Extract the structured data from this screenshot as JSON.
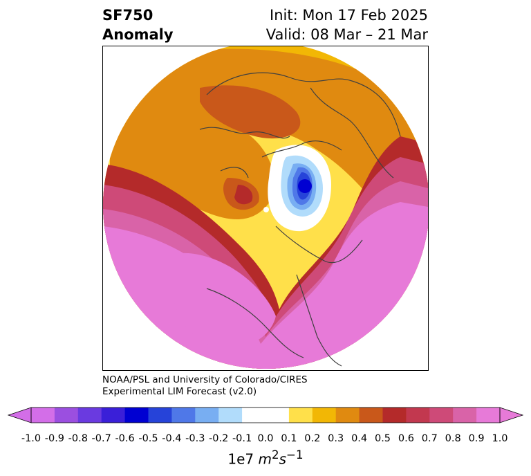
{
  "header": {
    "title_line1": "SF750",
    "title_line2": "Anomaly",
    "init": "Init: Mon 17 Feb 2025",
    "valid": "Valid: 08 Mar – 21 Mar"
  },
  "credit": {
    "line1": "NOAA/PSL and University of Colorado/CIRES",
    "line2": "Experimental LIM Forecast (v2.0)"
  },
  "colorbar": {
    "unit_base": "1e7 ",
    "unit_math": "m",
    "unit_sup1": "2",
    "unit_math2": "s",
    "unit_sup2": "−1",
    "ticks": [
      "-1.0",
      "-0.9",
      "-0.8",
      "-0.7",
      "-0.6",
      "-0.5",
      "-0.4",
      "-0.3",
      "-0.2",
      "-0.1",
      "0.0",
      "0.1",
      "0.2",
      "0.3",
      "0.4",
      "0.5",
      "0.6",
      "0.7",
      "0.8",
      "0.9",
      "1.0"
    ],
    "colors": [
      "#d36ee8",
      "#9b4fe0",
      "#6a3ae0",
      "#3a1fd8",
      "#0000d2",
      "#2643d9",
      "#4f78e8",
      "#78aef2",
      "#b1dcfb",
      "#ffffff",
      "#ffffff",
      "#ffe04a",
      "#f2b705",
      "#e08a10",
      "#c9581a",
      "#b42a2a",
      "#c2384f",
      "#ce4a78",
      "#d963a8",
      "#e77ad8"
    ],
    "under_color": "#d36ee8",
    "over_color": "#e77ad8"
  },
  "map": {
    "projection": "north-polar-stereographic",
    "field": "streamfunction anomaly",
    "level": "750",
    "features": [
      {
        "name": "north-pacific-positive",
        "value": 1.0,
        "color": "#e77ad8"
      },
      {
        "name": "siberia-negative",
        "value": -0.6,
        "color": "#0000d2"
      },
      {
        "name": "eurasia-positive",
        "value": 0.4,
        "color": "#e08a10"
      },
      {
        "name": "east-asia-positive",
        "value": 0.5,
        "color": "#c9581a"
      }
    ]
  }
}
